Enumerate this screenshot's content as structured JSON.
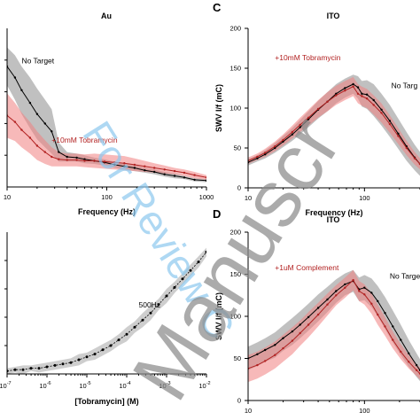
{
  "chart_data": [
    {
      "panel": "",
      "title": "Au",
      "type": "line",
      "xlabel": "Frequency (Hz)",
      "ylabel": "",
      "xscale": "log",
      "xlim": [
        10,
        1000
      ],
      "ylim": [
        0,
        1
      ],
      "xticks": [
        {
          "v": 10,
          "label": "10"
        },
        {
          "v": 100,
          "label": "100"
        },
        {
          "v": 1000,
          "label": "1000"
        }
      ],
      "yticks": [],
      "annotations": [
        {
          "text": "No Target",
          "color": "#000000",
          "x": 14,
          "y": 0.78
        },
        {
          "text": "+10mM Tobramycin",
          "color": "#b22222",
          "x": 28,
          "y": 0.28
        }
      ],
      "series": [
        {
          "name": "No Target",
          "color": "#000000",
          "band_color": "#8c8c8c",
          "x": [
            10,
            12,
            14,
            17,
            20,
            24,
            28,
            33,
            40,
            50,
            60,
            75,
            95,
            120,
            150,
            190,
            240,
            300,
            380,
            480,
            600,
            760,
            1000
          ],
          "y": [
            0.76,
            0.69,
            0.61,
            0.53,
            0.46,
            0.4,
            0.35,
            0.22,
            0.19,
            0.185,
            0.175,
            0.165,
            0.155,
            0.14,
            0.13,
            0.12,
            0.105,
            0.095,
            0.08,
            0.07,
            0.06,
            0.045,
            0.04
          ],
          "err": [
            0.12,
            0.14,
            0.15,
            0.16,
            0.16,
            0.15,
            0.14,
            0.06,
            0.03,
            0.025,
            0.025,
            0.02,
            0.02,
            0.02,
            0.02,
            0.02,
            0.015,
            0.015,
            0.015,
            0.015,
            0.01,
            0.01,
            0.01
          ]
        },
        {
          "name": "+10mM Tobramycin",
          "color": "#b22222",
          "band_color": "#f08080",
          "x": [
            10,
            12,
            14,
            17,
            20,
            24,
            28,
            33,
            40,
            50,
            60,
            75,
            95,
            120,
            150,
            190,
            240,
            300,
            380,
            480,
            600,
            760,
            1000
          ],
          "y": [
            0.45,
            0.41,
            0.36,
            0.31,
            0.26,
            0.22,
            0.19,
            0.175,
            0.17,
            0.17,
            0.165,
            0.165,
            0.16,
            0.155,
            0.15,
            0.14,
            0.13,
            0.12,
            0.11,
            0.1,
            0.09,
            0.075,
            0.06
          ],
          "err": [
            0.14,
            0.12,
            0.11,
            0.1,
            0.09,
            0.075,
            0.06,
            0.045,
            0.04,
            0.04,
            0.04,
            0.045,
            0.045,
            0.045,
            0.045,
            0.04,
            0.035,
            0.03,
            0.025,
            0.02,
            0.02,
            0.02,
            0.015
          ]
        }
      ]
    },
    {
      "panel": "C",
      "title": "ITO",
      "type": "line",
      "xlabel": "Frequency (Hz)",
      "ylabel": "SWV I/f (mC)",
      "xscale": "log",
      "xlim": [
        10,
        300
      ],
      "ylim": [
        0,
        200
      ],
      "xticks": [
        {
          "v": 10,
          "label": "10"
        },
        {
          "v": 100,
          "label": "100"
        }
      ],
      "yticks": [
        0,
        50,
        100,
        150,
        200
      ],
      "annotations": [
        {
          "text": "+10mM Tobramycin",
          "color": "#b22222",
          "x": 17,
          "y": 160
        },
        {
          "text": "No Targ",
          "color": "#000000",
          "x": 170,
          "y": 125
        }
      ],
      "series": [
        {
          "name": "No Target",
          "color": "#000000",
          "band_color": "#8c8c8c",
          "x": [
            10,
            12,
            14,
            17,
            20,
            24,
            28,
            33,
            40,
            48,
            57,
            68,
            80,
            88,
            95,
            105,
            120,
            140,
            165,
            195,
            230,
            270,
            300
          ],
          "y": [
            32,
            37,
            42,
            50,
            58,
            67,
            76,
            86,
            98,
            108,
            118,
            125,
            130,
            126,
            118,
            117,
            110,
            98,
            84,
            68,
            52,
            38,
            30
          ],
          "err": [
            4,
            4,
            5,
            6,
            7,
            8,
            9,
            10,
            11,
            12,
            12,
            12,
            12,
            14,
            16,
            18,
            20,
            20,
            20,
            19,
            18,
            16,
            15
          ]
        },
        {
          "name": "+10mM Tobramycin",
          "color": "#b22222",
          "band_color": "#f08080",
          "x": [
            10,
            12,
            14,
            17,
            20,
            24,
            28,
            33,
            40,
            48,
            57,
            68,
            80,
            88,
            95,
            105,
            120,
            140,
            165,
            195,
            230,
            270,
            300
          ],
          "y": [
            34,
            39,
            44,
            52,
            60,
            70,
            79,
            88,
            99,
            108,
            116,
            122,
            127,
            118,
            115,
            112,
            104,
            94,
            80,
            65,
            50,
            37,
            30
          ],
          "err": [
            4,
            4,
            5,
            6,
            7,
            8,
            9,
            10,
            11,
            12,
            12,
            12,
            12,
            12,
            12,
            12,
            12,
            12,
            11,
            10,
            9,
            8,
            7
          ]
        }
      ]
    },
    {
      "panel": "",
      "title": "",
      "type": "scatter",
      "xlabel": "[Tobramycin] (M)",
      "ylabel": "",
      "xscale": "log",
      "xlim": [
        1e-07,
        0.01
      ],
      "ylim": [
        0,
        1
      ],
      "xtick_labels": [
        {
          "exp": -7,
          "base": "10",
          "sup": "-7"
        },
        {
          "exp": -6,
          "base": "10",
          "sup": "-6"
        },
        {
          "exp": -5,
          "base": "10",
          "sup": "-5"
        },
        {
          "exp": -4,
          "base": "10",
          "sup": "-4"
        },
        {
          "exp": -3,
          "base": "10",
          "sup": "-3"
        },
        {
          "exp": -2,
          "base": "10",
          "sup": "-2"
        }
      ],
      "annotations": [
        {
          "text": "500Hz",
          "color": "#000000",
          "logx": -3.7,
          "y": 0.47
        }
      ],
      "series": [
        {
          "name": "500Hz",
          "color": "#000000",
          "band_color": "#a6a6a6",
          "logx": [
            -7.0,
            -6.8,
            -6.6,
            -6.4,
            -6.2,
            -6.0,
            -5.8,
            -5.6,
            -5.4,
            -5.2,
            -5.0,
            -4.8,
            -4.6,
            -4.4,
            -4.2,
            -4.0,
            -3.8,
            -3.6,
            -3.4,
            -3.2,
            -3.0,
            -2.8,
            -2.6,
            -2.4,
            -2.2,
            -2.0
          ],
          "y": [
            0.02,
            0.03,
            0.03,
            0.04,
            0.04,
            0.05,
            0.06,
            0.07,
            0.08,
            0.1,
            0.12,
            0.14,
            0.17,
            0.2,
            0.24,
            0.28,
            0.33,
            0.38,
            0.43,
            0.49,
            0.55,
            0.61,
            0.67,
            0.73,
            0.79,
            0.86
          ],
          "err": [
            0.02,
            0.02,
            0.03,
            0.02,
            0.03,
            0.03,
            0.03,
            0.03,
            0.03,
            0.04,
            0.03,
            0.04,
            0.04,
            0.04,
            0.04,
            0.05,
            0.04,
            0.05,
            0.05,
            0.04,
            0.05,
            0.04,
            0.04,
            0.04,
            0.04,
            0.03
          ]
        }
      ]
    },
    {
      "panel": "D",
      "title": "ITO",
      "type": "line",
      "xlabel": "Frequency (Hz)",
      "ylabel": "SWV I/f (mC)",
      "xscale": "log",
      "xlim": [
        10,
        300
      ],
      "ylim": [
        0,
        200
      ],
      "xticks": [
        {
          "v": 10,
          "label": "10"
        },
        {
          "v": 100,
          "label": "100"
        }
      ],
      "yticks": [
        0,
        50,
        100,
        150,
        200
      ],
      "annotations": [
        {
          "text": "+1uM Complement",
          "color": "#b22222",
          "x": 17,
          "y": 155
        },
        {
          "text": "No Targe",
          "color": "#000000",
          "x": 165,
          "y": 145
        }
      ],
      "series": [
        {
          "name": "No Target",
          "color": "#000000",
          "band_color": "#8c8c8c",
          "x": [
            10,
            12,
            14,
            17,
            20,
            24,
            28,
            33,
            40,
            48,
            57,
            68,
            80,
            90,
            100,
            115,
            130,
            150,
            175,
            205,
            240,
            280,
            300
          ],
          "y": [
            50,
            55,
            60,
            66,
            74,
            82,
            90,
            99,
            110,
            120,
            130,
            138,
            142,
            132,
            134,
            128,
            118,
            104,
            88,
            72,
            56,
            42,
            36
          ],
          "err": [
            14,
            14,
            14,
            15,
            15,
            16,
            16,
            16,
            16,
            15,
            14,
            13,
            13,
            14,
            15,
            17,
            18,
            19,
            19,
            18,
            16,
            14,
            13
          ]
        },
        {
          "name": "+1uM Complement",
          "color": "#b22222",
          "band_color": "#f08080",
          "x": [
            10,
            12,
            14,
            17,
            20,
            24,
            28,
            33,
            40,
            48,
            57,
            68,
            80,
            90,
            100,
            115,
            130,
            150,
            175,
            205,
            240,
            280,
            300
          ],
          "y": [
            38,
            42,
            47,
            54,
            62,
            71,
            80,
            90,
            102,
            114,
            125,
            134,
            143,
            130,
            126,
            115,
            102,
            88,
            72,
            58,
            46,
            36,
            32
          ],
          "err": [
            16,
            16,
            16,
            16,
            16,
            16,
            15,
            15,
            14,
            13,
            12,
            12,
            12,
            12,
            12,
            12,
            12,
            11,
            10,
            9,
            8,
            7,
            7
          ]
        }
      ]
    }
  ],
  "watermark": {
    "blue_text": "For Review C",
    "gray_text": "Manuscr",
    "blue_color": "#8cc8ee",
    "gray_color": "#8a8a8a"
  }
}
